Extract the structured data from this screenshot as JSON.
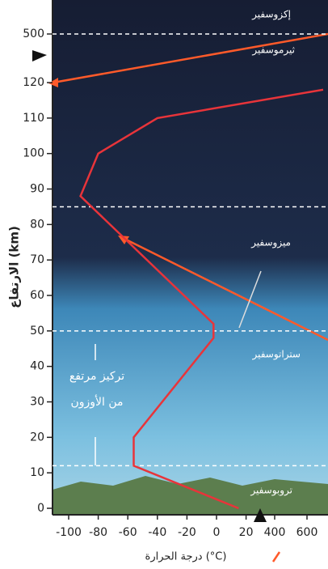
{
  "chart_data": {
    "type": "line",
    "x_label": "درجة الحرارة (°C)",
    "y_label": "الارتفاع (km)",
    "x": [
      15,
      -56,
      -56,
      -2,
      -2,
      -92,
      -80,
      -40,
      700
    ],
    "values": [
      0,
      12,
      20,
      48,
      52,
      88,
      100,
      110,
      118
    ],
    "color": "#e8343a",
    "xlim": [
      -110,
      700
    ],
    "ylim": [
      0,
      500
    ],
    "xticks": [
      -100,
      -80,
      -60,
      -40,
      -20,
      0,
      20,
      400,
      600
    ],
    "yticks": [
      0,
      10,
      20,
      30,
      40,
      50,
      60,
      70,
      80,
      90,
      100,
      110,
      120,
      500
    ],
    "boundaries": [
      12,
      50,
      85,
      500
    ],
    "layers": [
      "إكزوسفير",
      "ثيرموسفير",
      "ميزوسفير",
      "ستراتوسفير",
      "تروبوسفير"
    ],
    "ozone_note": [
      "تركيز مرتفع",
      "من الأوزون"
    ]
  }
}
